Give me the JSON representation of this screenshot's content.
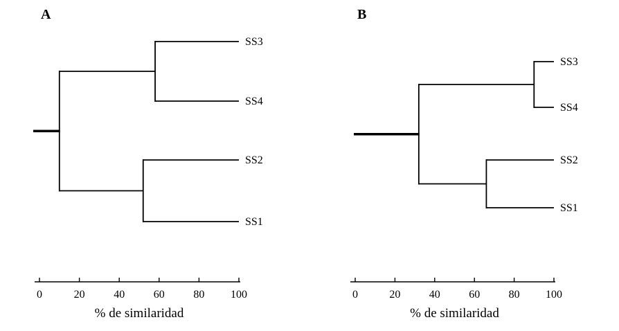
{
  "figure": {
    "background": "#ffffff",
    "text_color": "#000000"
  },
  "chart_data": [
    {
      "type": "dendrogram",
      "label": "A",
      "orientation": "horizontal",
      "xlabel": "% de similaridad",
      "x_ticks": [
        0,
        20,
        40,
        60,
        80,
        100
      ],
      "x_range": [
        0,
        100
      ],
      "leaves": [
        "SS3",
        "SS4",
        "SS2",
        "SS1"
      ],
      "tree": {
        "similarity": 10,
        "children": [
          {
            "similarity": 58,
            "children": [
              {
                "leaf": "SS3"
              },
              {
                "leaf": "SS4"
              }
            ]
          },
          {
            "similarity": 52,
            "children": [
              {
                "leaf": "SS2"
              },
              {
                "leaf": "SS1"
              }
            ]
          }
        ]
      },
      "line_color": "#000000"
    },
    {
      "type": "dendrogram",
      "label": "B",
      "orientation": "horizontal",
      "xlabel": "% de similaridad",
      "x_ticks": [
        0,
        20,
        40,
        60,
        80,
        100
      ],
      "x_range": [
        0,
        100
      ],
      "leaves": [
        "SS3",
        "SS4",
        "SS2",
        "SS1"
      ],
      "tree": {
        "similarity": 32,
        "children": [
          {
            "similarity": 90,
            "children": [
              {
                "leaf": "SS3"
              },
              {
                "leaf": "SS4"
              }
            ]
          },
          {
            "similarity": 66,
            "children": [
              {
                "leaf": "SS2"
              },
              {
                "leaf": "SS1"
              }
            ]
          }
        ]
      },
      "line_color": "#000000"
    }
  ]
}
